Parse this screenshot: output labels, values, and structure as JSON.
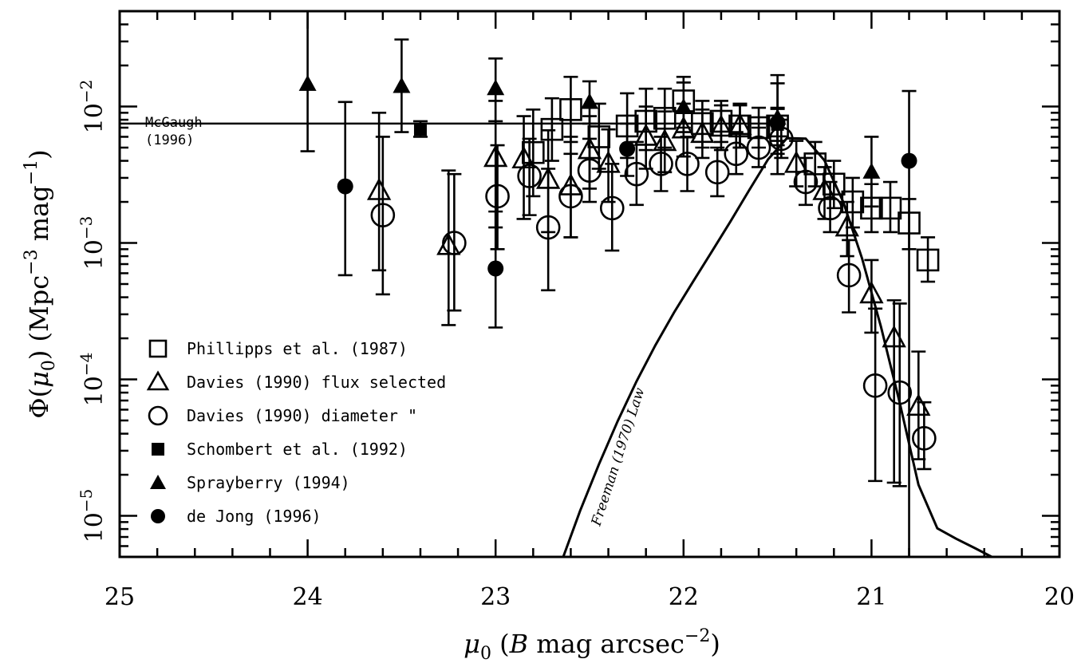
{
  "chart_data": {
    "type": "scatter",
    "x_axis": {
      "range": [
        25,
        20
      ],
      "reversed": true,
      "ticks": [
        25,
        24,
        23,
        22,
        21,
        20
      ],
      "tick_labels": [
        "25",
        "24",
        "23",
        "22",
        "21",
        "20"
      ],
      "label_parts": {
        "mu": "μ",
        "sub": "0",
        "open": " (",
        "band": "B",
        "unit": " mag arcsec",
        "exp": "−2",
        "close": ")"
      }
    },
    "y_axis": {
      "scale": "log",
      "range": [
        5e-06,
        0.05
      ],
      "ticks": [
        1e-05,
        0.0001,
        0.001,
        0.01
      ],
      "tick_labels": [
        {
          "base": "10",
          "exp": "−5"
        },
        {
          "base": "10",
          "exp": "−4"
        },
        {
          "base": "10",
          "exp": "−3"
        },
        {
          "base": "10",
          "exp": "−2"
        }
      ],
      "label_parts": {
        "phi": "Φ(",
        "mu": "μ",
        "sub": "0",
        "mid": ")  (Mpc",
        "exp1": "−3",
        "mag": " mag",
        "exp2": "−1",
        "close": ")"
      }
    },
    "legend": {
      "position": "bottom-left",
      "entries": [
        {
          "marker": "open-square",
          "label": "Phillipps et al. (1987)"
        },
        {
          "marker": "open-triangle",
          "label": "Davies (1990) flux selected"
        },
        {
          "marker": "open-circle",
          "label": "Davies (1990) diameter \""
        },
        {
          "marker": "filled-square",
          "label": "Schombert et al. (1992)"
        },
        {
          "marker": "filled-triangle",
          "label": "Sprayberry (1994)"
        },
        {
          "marker": "filled-circle",
          "label": "de Jong (1996)"
        }
      ]
    },
    "annotations": {
      "mcgaugh_line1": "McGaugh",
      "mcgaugh_line2": "(1996)",
      "freeman": "Freeman (1970) Law"
    },
    "mcgaugh_level": 0.0075,
    "freeman_curve": {
      "x": [
        22.64,
        22.55,
        22.45,
        22.35,
        22.25,
        22.15,
        22.05,
        21.95,
        21.85,
        21.75,
        21.65,
        21.55,
        21.45,
        21.35,
        21.25,
        21.15,
        21.05,
        20.95,
        20.85,
        20.75,
        20.65,
        20.55,
        20.45,
        20.36
      ],
      "y": [
        5e-06,
        1.09e-05,
        2.39e-05,
        4.95e-05,
        9.68e-05,
        0.000178,
        0.00031,
        0.000519,
        0.000861,
        0.00144,
        0.00245,
        0.00411,
        0.00586,
        0.00582,
        0.00402,
        0.00199,
        0.000769,
        0.000244,
        6.77e-05,
        1.69e-05,
        8.1e-06,
        6.8e-06,
        5.8e-06,
        5e-06
      ]
    },
    "series": [
      {
        "marker": "open-square",
        "points": [
          {
            "x": 22.8,
            "y": 0.0046,
            "lo": 0.0022,
            "hi": 0.0095
          },
          {
            "x": 22.7,
            "y": 0.0068,
            "lo": 0.004,
            "hi": 0.0115
          },
          {
            "x": 22.6,
            "y": 0.0095,
            "lo": 0.0055,
            "hi": 0.0165
          },
          {
            "x": 22.45,
            "y": 0.006,
            "lo": 0.0035,
            "hi": 0.0105
          },
          {
            "x": 22.3,
            "y": 0.0072,
            "lo": 0.0042,
            "hi": 0.0125
          },
          {
            "x": 22.2,
            "y": 0.0078,
            "lo": 0.0048,
            "hi": 0.0135
          },
          {
            "x": 22.1,
            "y": 0.0082,
            "lo": 0.005,
            "hi": 0.0135
          },
          {
            "x": 22.0,
            "y": 0.011,
            "lo": 0.007,
            "hi": 0.0165
          },
          {
            "x": 21.9,
            "y": 0.0075,
            "lo": 0.005,
            "hi": 0.011
          },
          {
            "x": 21.8,
            "y": 0.0078,
            "lo": 0.0055,
            "hi": 0.011
          },
          {
            "x": 21.7,
            "y": 0.0072,
            "lo": 0.005,
            "hi": 0.0105
          },
          {
            "x": 21.6,
            "y": 0.007,
            "lo": 0.005,
            "hi": 0.0098
          },
          {
            "x": 21.5,
            "y": 0.0072,
            "lo": 0.0052,
            "hi": 0.0098
          },
          {
            "x": 21.3,
            "y": 0.0038,
            "lo": 0.0026,
            "hi": 0.0055
          },
          {
            "x": 21.2,
            "y": 0.0027,
            "lo": 0.0018,
            "hi": 0.004
          },
          {
            "x": 21.1,
            "y": 0.002,
            "lo": 0.0013,
            "hi": 0.003
          },
          {
            "x": 21.0,
            "y": 0.0018,
            "lo": 0.0012,
            "hi": 0.0027
          },
          {
            "x": 20.9,
            "y": 0.0018,
            "lo": 0.0012,
            "hi": 0.0028
          },
          {
            "x": 20.8,
            "y": 0.0014,
            "lo": 0.0009,
            "hi": 0.0021
          },
          {
            "x": 20.7,
            "y": 0.00075,
            "lo": 0.00052,
            "hi": 0.0011
          }
        ]
      },
      {
        "marker": "open-triangle",
        "points": [
          {
            "x": 23.62,
            "y": 0.0024,
            "lo": 0.00063,
            "hi": 0.009
          },
          {
            "x": 23.25,
            "y": 0.00095,
            "lo": 0.00025,
            "hi": 0.0034
          },
          {
            "x": 23.0,
            "y": 0.0042,
            "lo": 0.0013,
            "hi": 0.011
          },
          {
            "x": 22.85,
            "y": 0.0041,
            "lo": 0.0015,
            "hi": 0.0085
          },
          {
            "x": 22.72,
            "y": 0.0029,
            "lo": 0.0012,
            "hi": 0.0067
          },
          {
            "x": 22.6,
            "y": 0.0026,
            "lo": 0.0011,
            "hi": 0.006
          },
          {
            "x": 22.5,
            "y": 0.0048,
            "lo": 0.0025,
            "hi": 0.0085
          },
          {
            "x": 22.4,
            "y": 0.0038,
            "lo": 0.002,
            "hi": 0.0068
          },
          {
            "x": 22.2,
            "y": 0.006,
            "lo": 0.0035,
            "hi": 0.01
          },
          {
            "x": 22.1,
            "y": 0.0055,
            "lo": 0.0033,
            "hi": 0.0092
          },
          {
            "x": 22.0,
            "y": 0.0068,
            "lo": 0.0043,
            "hi": 0.0105
          },
          {
            "x": 21.9,
            "y": 0.0063,
            "lo": 0.0042,
            "hi": 0.0095
          },
          {
            "x": 21.8,
            "y": 0.007,
            "lo": 0.0048,
            "hi": 0.0102
          },
          {
            "x": 21.7,
            "y": 0.0072,
            "lo": 0.005,
            "hi": 0.0102
          },
          {
            "x": 21.4,
            "y": 0.0038,
            "lo": 0.0026,
            "hi": 0.0056
          },
          {
            "x": 21.25,
            "y": 0.0024,
            "lo": 0.0015,
            "hi": 0.0036
          },
          {
            "x": 21.13,
            "y": 0.0013,
            "lo": 0.0008,
            "hi": 0.002
          },
          {
            "x": 21.0,
            "y": 0.00042,
            "lo": 0.00022,
            "hi": 0.00075
          },
          {
            "x": 20.88,
            "y": 0.0002,
            "lo": 1.75e-05,
            "hi": 0.00038
          },
          {
            "x": 20.75,
            "y": 6.3e-05,
            "lo": 2.6e-05,
            "hi": 0.00016
          }
        ]
      },
      {
        "marker": "open-circle",
        "points": [
          {
            "x": 23.6,
            "y": 0.0016,
            "lo": 0.00042,
            "hi": 0.006
          },
          {
            "x": 23.22,
            "y": 0.001,
            "lo": 0.00032,
            "hi": 0.0032
          },
          {
            "x": 22.99,
            "y": 0.0022,
            "lo": 0.0009,
            "hi": 0.0052
          },
          {
            "x": 22.82,
            "y": 0.0031,
            "lo": 0.0016,
            "hi": 0.0058
          },
          {
            "x": 22.72,
            "y": 0.0013,
            "lo": 0.00045,
            "hi": 0.0035
          },
          {
            "x": 22.6,
            "y": 0.0022,
            "lo": 0.0011,
            "hi": 0.0045
          },
          {
            "x": 22.5,
            "y": 0.0034,
            "lo": 0.002,
            "hi": 0.0058
          },
          {
            "x": 22.38,
            "y": 0.0018,
            "lo": 0.00088,
            "hi": 0.0038
          },
          {
            "x": 22.25,
            "y": 0.0032,
            "lo": 0.0019,
            "hi": 0.0055
          },
          {
            "x": 22.12,
            "y": 0.0038,
            "lo": 0.0024,
            "hi": 0.006
          },
          {
            "x": 21.98,
            "y": 0.0038,
            "lo": 0.0024,
            "hi": 0.006
          },
          {
            "x": 21.82,
            "y": 0.0033,
            "lo": 0.0022,
            "hi": 0.005
          },
          {
            "x": 21.72,
            "y": 0.0045,
            "lo": 0.0032,
            "hi": 0.0065
          },
          {
            "x": 21.6,
            "y": 0.005,
            "lo": 0.0036,
            "hi": 0.007
          },
          {
            "x": 21.48,
            "y": 0.0058,
            "lo": 0.0042,
            "hi": 0.008
          },
          {
            "x": 21.35,
            "y": 0.0028,
            "lo": 0.0019,
            "hi": 0.0042
          },
          {
            "x": 21.22,
            "y": 0.0018,
            "lo": 0.0012,
            "hi": 0.0028
          },
          {
            "x": 21.12,
            "y": 0.00058,
            "lo": 0.00031,
            "hi": 0.00105
          },
          {
            "x": 20.98,
            "y": 9e-05,
            "lo": 1.8e-05,
            "hi": 0.00033
          },
          {
            "x": 20.85,
            "y": 8e-05,
            "lo": 1.65e-05,
            "hi": 0.00036
          },
          {
            "x": 20.72,
            "y": 3.7e-05,
            "lo": 2.2e-05,
            "hi": 6.8e-05
          }
        ]
      },
      {
        "marker": "filled-square",
        "points": [
          {
            "x": 23.4,
            "y": 0.0068,
            "lo": 0.006,
            "hi": 0.0078
          },
          {
            "x": 21.5,
            "y": 0.0074,
            "lo": 0.0056,
            "hi": 0.0096
          }
        ]
      },
      {
        "marker": "filled-triangle",
        "points": [
          {
            "x": 24.0,
            "y": 0.0145,
            "lo": 0.0047,
            "hi": 0.05
          },
          {
            "x": 23.5,
            "y": 0.014,
            "lo": 0.0065,
            "hi": 0.031
          },
          {
            "x": 23.0,
            "y": 0.0135,
            "lo": 0.0078,
            "hi": 0.0225
          },
          {
            "x": 22.5,
            "y": 0.0107,
            "lo": 0.0075,
            "hi": 0.0153
          },
          {
            "x": 22.0,
            "y": 0.0098,
            "lo": 0.0065,
            "hi": 0.015
          },
          {
            "x": 21.5,
            "y": 0.0082,
            "lo": 0.0045,
            "hi": 0.0148
          },
          {
            "x": 21.0,
            "y": 0.0033,
            "lo": 0.00185,
            "hi": 0.006
          }
        ]
      },
      {
        "marker": "filled-circle",
        "points": [
          {
            "x": 23.8,
            "y": 0.0026,
            "lo": 0.00058,
            "hi": 0.0108
          },
          {
            "x": 23.0,
            "y": 0.00065,
            "lo": 0.00024,
            "hi": 0.0017
          },
          {
            "x": 22.3,
            "y": 0.0049,
            "lo": 0.0031,
            "hi": 0.0075
          },
          {
            "x": 21.5,
            "y": 0.0076,
            "lo": 0.0032,
            "hi": 0.017
          },
          {
            "x": 20.8,
            "y": 0.004,
            "lo": 5e-06,
            "hi": 0.013
          }
        ]
      }
    ]
  }
}
